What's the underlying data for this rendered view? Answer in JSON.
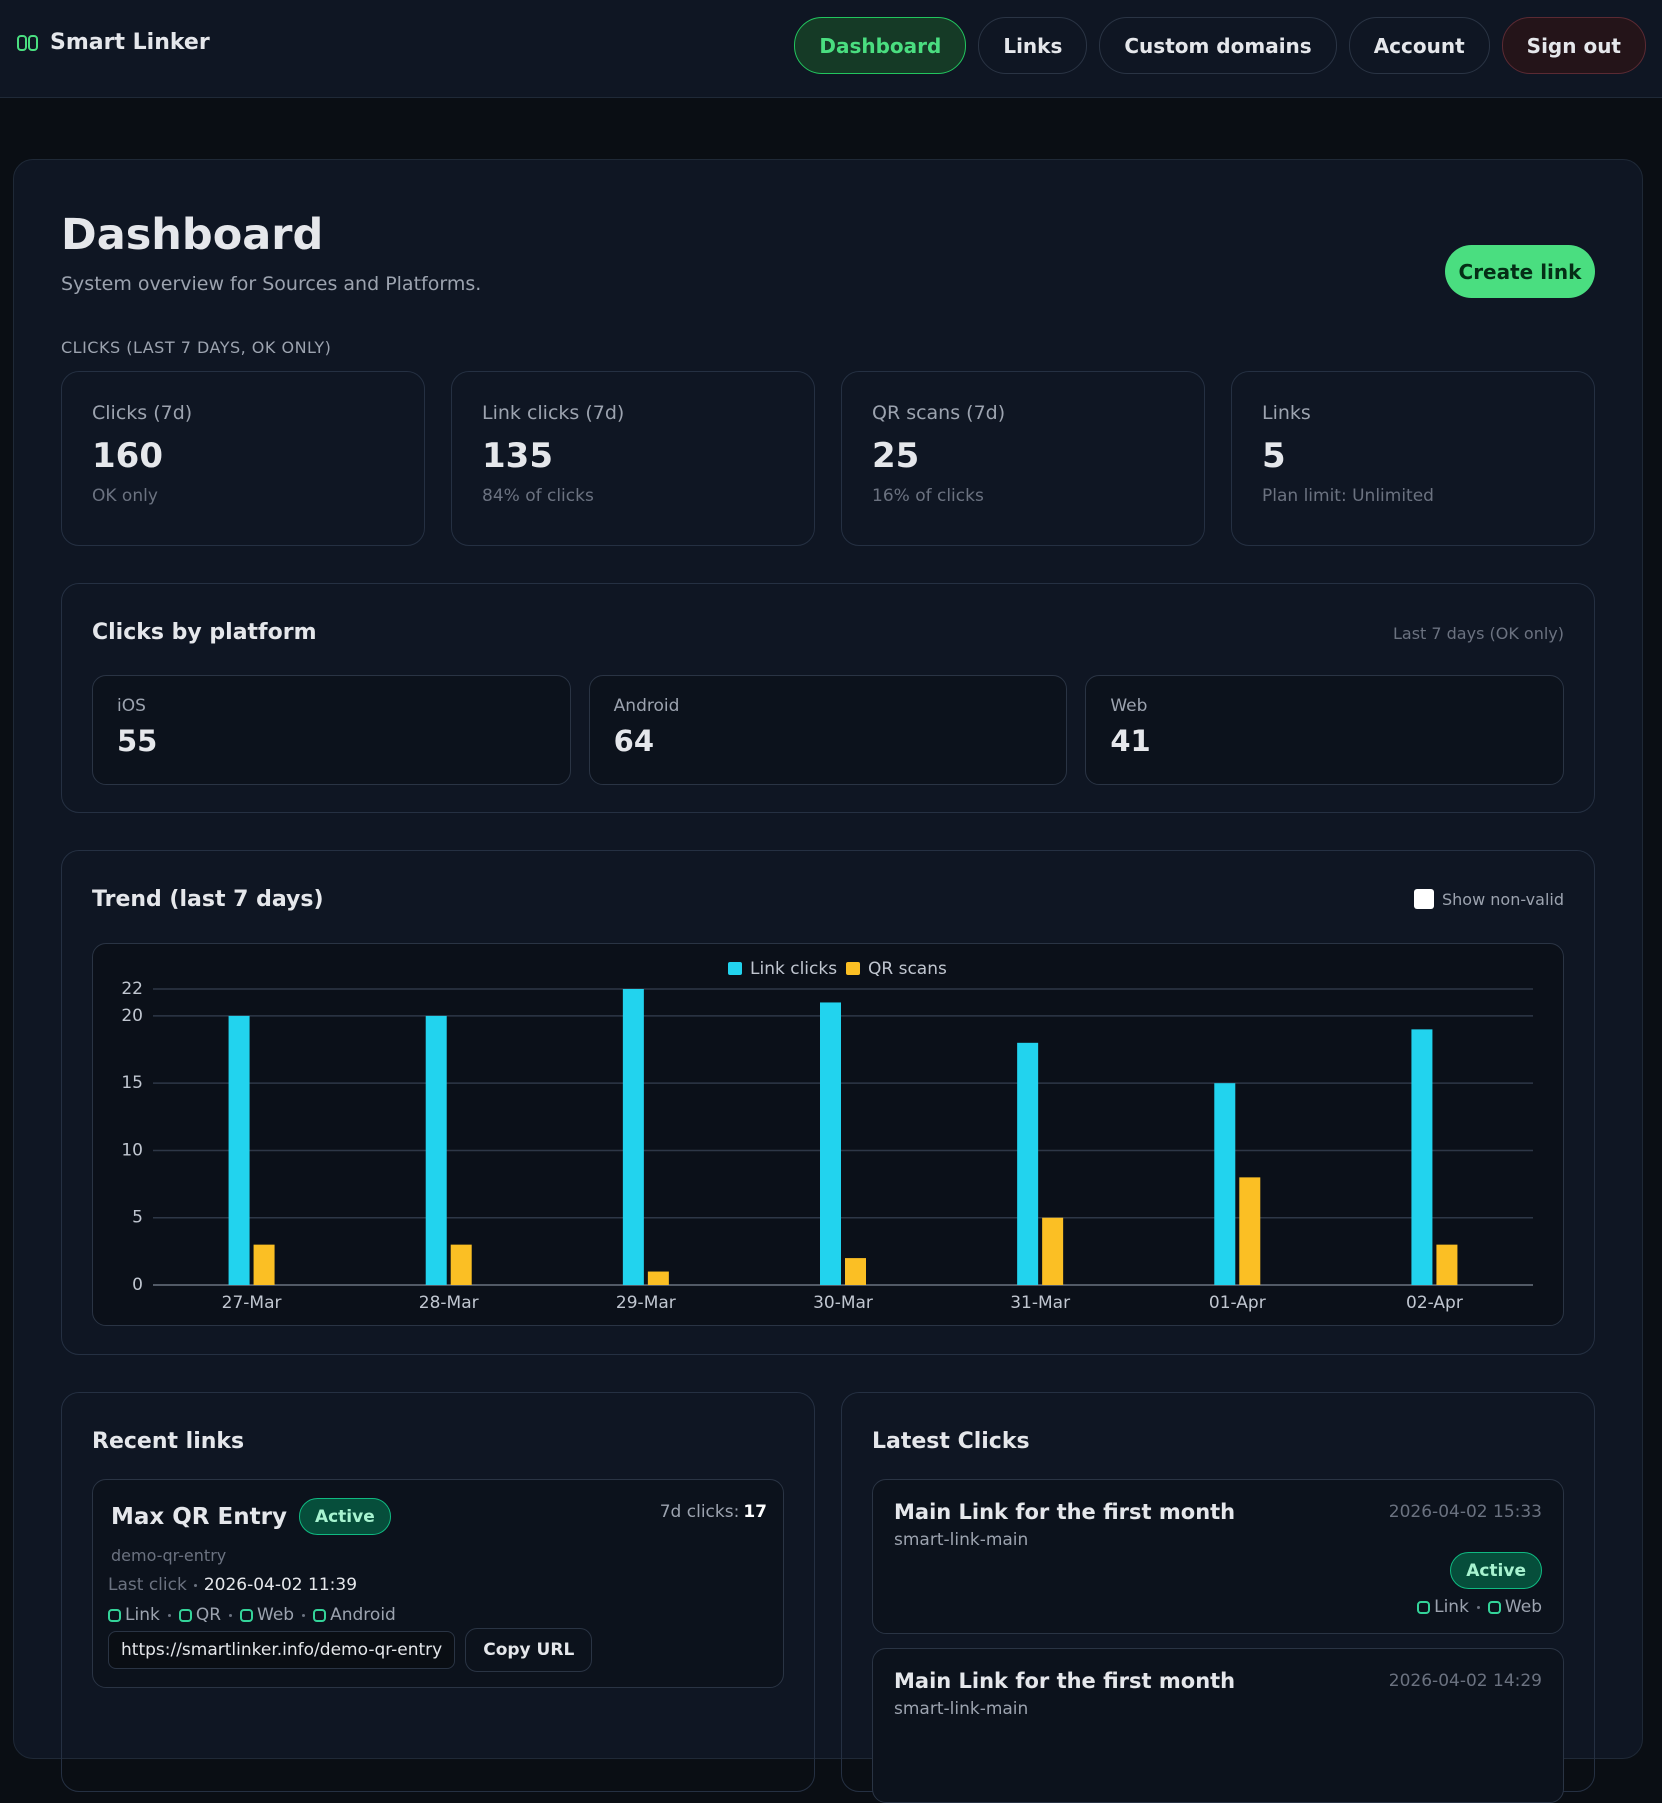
{
  "nav": {
    "brand": "Smart Linker",
    "items": [
      "Dashboard",
      "Links",
      "Custom domains",
      "Account",
      "Sign out"
    ]
  },
  "header": {
    "title": "Dashboard",
    "subtitle": "System overview for Sources and Platforms.",
    "button": "Create link"
  },
  "stats": {
    "heading": "CLICKS (LAST 7 DAYS, OK ONLY)",
    "cards": [
      {
        "label": "Clicks (7d)",
        "value": 160,
        "note": "OK only"
      },
      {
        "label": "Link clicks (7d)",
        "value": 135,
        "note": "84% of clicks"
      },
      {
        "label": "QR scans (7d)",
        "value": 25,
        "note": "16% of clicks"
      },
      {
        "label": "Links",
        "value": 5,
        "note": "Plan limit: Unlimited"
      }
    ]
  },
  "platforms": {
    "title": "Clicks by platform",
    "note": "Last 7 days (OK only)",
    "items": [
      {
        "label": "iOS",
        "value": 55
      },
      {
        "label": "Android",
        "value": 64
      },
      {
        "label": "Web",
        "value": 41
      }
    ]
  },
  "trend_toggle": "Show non-valid",
  "chart_data": {
    "type": "bar",
    "title": "Trend (last 7 days)",
    "categories": [
      "27-Mar",
      "28-Mar",
      "29-Mar",
      "30-Mar",
      "31-Mar",
      "01-Apr",
      "02-Apr"
    ],
    "series": [
      {
        "name": "Link clicks",
        "color": "#22d3ee",
        "values": [
          20,
          20,
          22,
          21,
          18,
          15,
          19
        ]
      },
      {
        "name": "QR scans",
        "color": "#fbbf24",
        "values": [
          3,
          3,
          1,
          2,
          5,
          8,
          3
        ]
      }
    ],
    "ylim": [
      0,
      22
    ],
    "yticks": [
      0,
      5,
      10,
      15,
      20,
      22
    ],
    "grid": true,
    "legend": "top"
  },
  "recent_links": {
    "title": "Recent links",
    "items": [
      {
        "name": "Max QR Entry",
        "status": "Active",
        "slug": "demo-qr-entry",
        "clicks_label": "7d clicks:",
        "clicks": 17,
        "last_click_label": "Last click",
        "last_click": "2026-04-02 11:39",
        "tags": [
          "Link",
          "QR",
          "Web",
          "Android"
        ],
        "url": "https://smartlinker.info/demo-qr-entry",
        "copy": "Copy URL"
      }
    ]
  },
  "latest_clicks": {
    "title": "Latest Clicks",
    "items": [
      {
        "name": "Main Link for the first month",
        "slug": "smart-link-main",
        "time": "2026-04-02 15:33",
        "status": "Active",
        "tags": [
          "Link",
          "Web"
        ]
      },
      {
        "name": "Main Link for the first month",
        "slug": "smart-link-main",
        "time": "2026-04-02 14:29"
      }
    ]
  }
}
